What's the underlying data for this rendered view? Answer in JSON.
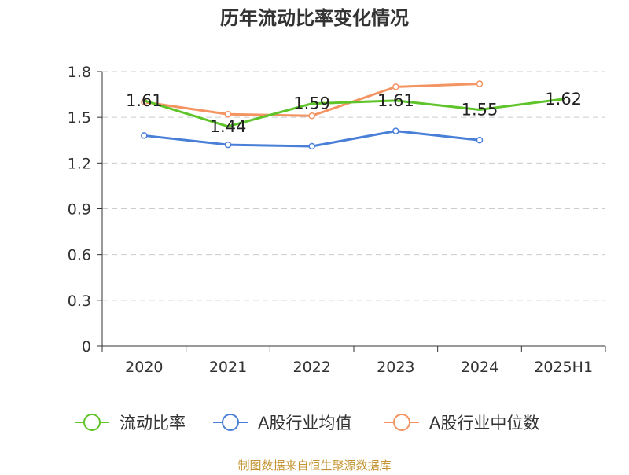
{
  "chart_data": {
    "type": "line",
    "title": "历年流动比率变化情况",
    "categories": [
      "2020",
      "2021",
      "2022",
      "2023",
      "2024",
      "2025H1"
    ],
    "ylim": [
      0,
      1.8
    ],
    "yticks": [
      "0",
      "0.3",
      "0.6",
      "0.9",
      "1.2",
      "1.5",
      "1.8"
    ],
    "grid": true,
    "legend_position": "bottom",
    "series": [
      {
        "name": "流动比率",
        "color": "#5ec42a",
        "values": [
          1.61,
          1.44,
          1.59,
          1.61,
          1.55,
          1.62
        ],
        "labels": [
          "1.61",
          "1.44",
          "1.59",
          "1.61",
          "1.55",
          "1.62"
        ],
        "show_labels": true
      },
      {
        "name": "A股行业均值",
        "color": "#4a7fd8",
        "values": [
          1.38,
          1.32,
          1.31,
          1.41,
          1.35,
          null
        ],
        "show_labels": false
      },
      {
        "name": "A股行业中位数",
        "color": "#f39462",
        "values": [
          1.6,
          1.52,
          1.51,
          1.7,
          1.72,
          null
        ],
        "show_labels": false
      }
    ],
    "source": "制图数据来自恒生聚源数据库",
    "source_color": "#c49432"
  }
}
